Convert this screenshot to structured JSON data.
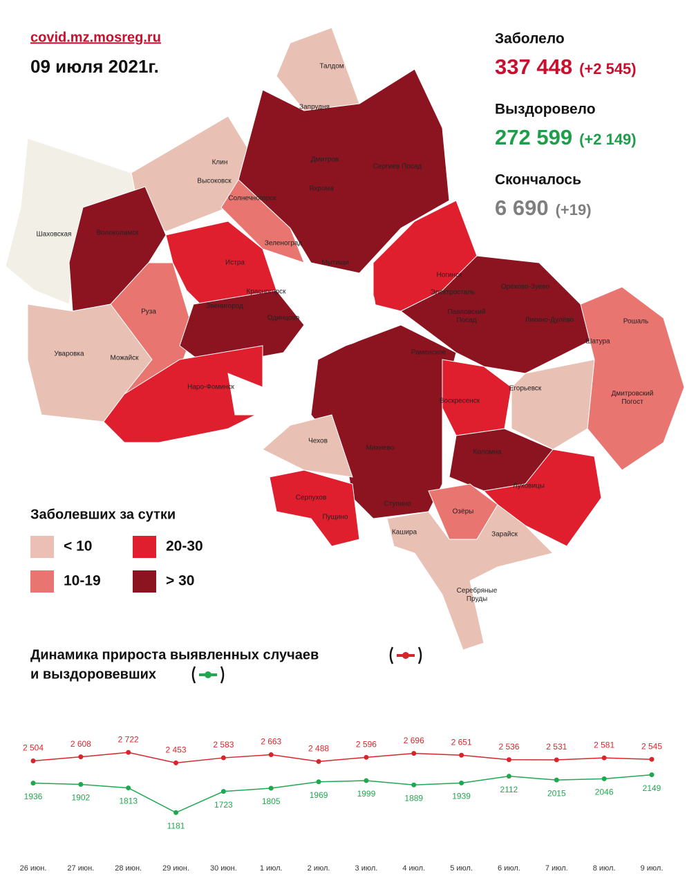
{
  "header": {
    "source": "covid.mz.mosreg.ru",
    "date": "09 июля 2021г."
  },
  "stats": [
    {
      "label": "Заболело",
      "value": "337 448",
      "delta": "(+2 545)",
      "color": "#c8102e"
    },
    {
      "label": "Выздоровело",
      "value": "272 599",
      "delta": "(+2 149)",
      "color": "#1e9e4a"
    },
    {
      "label": "Скончалось",
      "value": "6 690",
      "delta": "(+19)",
      "color": "#7f7f7f"
    }
  ],
  "legend": {
    "title": "Заболевших за сутки",
    "items": [
      {
        "label": "< 10",
        "color": "#ecbfb6"
      },
      {
        "label": "10-19",
        "color": "#e8756f"
      },
      {
        "label": "20-30",
        "color": "#e01f2e"
      },
      {
        "label": "> 30",
        "color": "#8b1420"
      }
    ]
  },
  "map": {
    "labels": [
      "Талдом",
      "Запрудня",
      "Дмитров",
      "Сергиев Посад",
      "Яхрома",
      "Клин",
      "Высоковск",
      "Солнечногорск",
      "Волоколамск",
      "Шаховская",
      "Зеленоград",
      "Истра",
      "Мытищи",
      "Красногорск",
      "Ногинск",
      "Электросталь",
      "Орехово-Зуево",
      "Звенигород",
      "Одинцово",
      "Павловский Посад",
      "Ликино-Дулёво",
      "Рошаль",
      "Руза",
      "Шатура",
      "Уваровка",
      "Можайск",
      "Раменское",
      "Наро-Фоминск",
      "Егорьевск",
      "Дмитровский Погост",
      "Воскресенск",
      "Чехов",
      "Михнево",
      "Коломна",
      "Серпухов",
      "Луховицы",
      "Пущино",
      "Ступино",
      "Озёры",
      "Кашира",
      "Зарайск",
      "Серебряные Пруды"
    ]
  },
  "chart_data": {
    "type": "line",
    "title": "Динамика прироста выявленных случаев",
    "subtitle": "и выздоровевших",
    "categories": [
      "26 июн.",
      "27 июн.",
      "28 июн.",
      "29 июн.",
      "30 июн.",
      "1 июл.",
      "2 июл.",
      "3 июл.",
      "4 июл.",
      "5 июл.",
      "6 июл.",
      "7 июл.",
      "8 июл.",
      "9 июл."
    ],
    "series": [
      {
        "name": "выявленные случаи",
        "color": "#d7262b",
        "values": [
          2504,
          2608,
          2722,
          2453,
          2583,
          2663,
          2488,
          2596,
          2696,
          2651,
          2536,
          2531,
          2581,
          2545
        ],
        "value_labels": [
          "2 504",
          "2 608",
          "2 722",
          "2 453",
          "2 583",
          "2 663",
          "2 488",
          "2 596",
          "2 696",
          "2 651",
          "2 536",
          "2 531",
          "2 581",
          "2 545"
        ]
      },
      {
        "name": "выздоровевшие",
        "color": "#1fa84f",
        "values": [
          1936,
          1902,
          1813,
          1181,
          1723,
          1805,
          1969,
          1999,
          1889,
          1939,
          2112,
          2015,
          2046,
          2149
        ]
      }
    ]
  }
}
